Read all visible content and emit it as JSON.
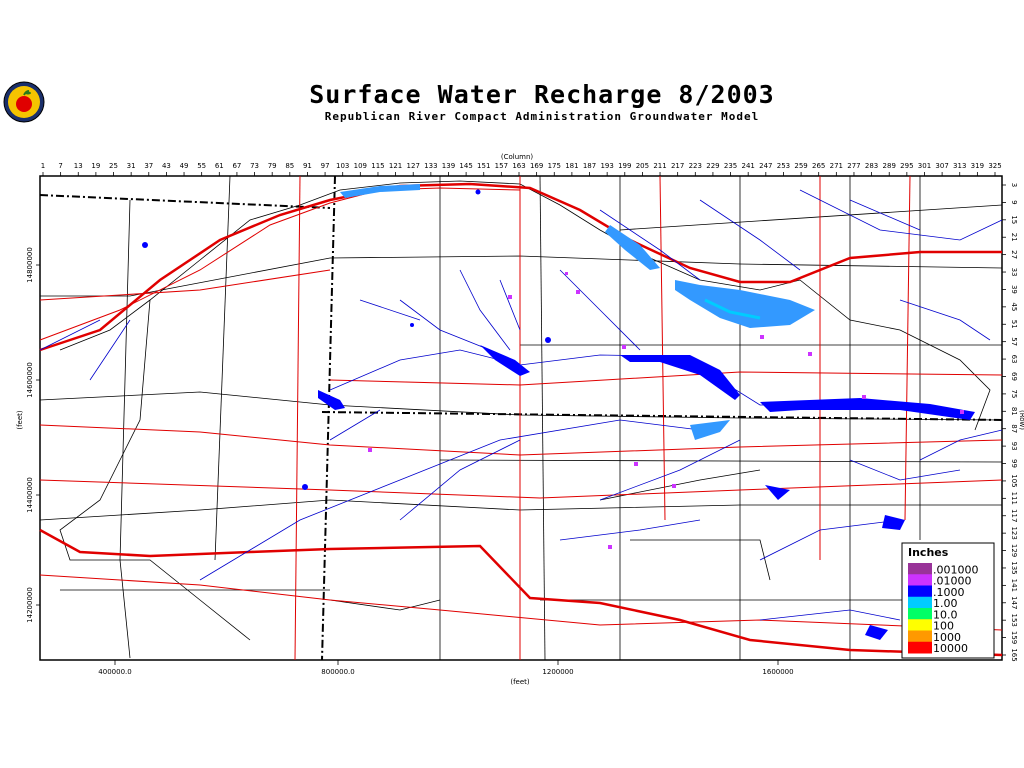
{
  "title": "Surface Water Recharge 8/2003",
  "subtitle": "Republican River Compact Administration Groundwater Model",
  "column_axis_label": "(Column)",
  "row_axis_label": "(Row)",
  "x_axis_label": "(feet)",
  "y_axis_label": "(feet)",
  "column_ticks": [
    "1",
    "7",
    "13",
    "19",
    "25",
    "31",
    "37",
    "43",
    "49",
    "55",
    "61",
    "67",
    "73",
    "79",
    "85",
    "91",
    "97",
    "103",
    "109",
    "115",
    "121",
    "127",
    "133",
    "139",
    "145",
    "151",
    "157",
    "163",
    "169",
    "175",
    "181",
    "187",
    "193",
    "199",
    "205",
    "211",
    "217",
    "223",
    "229",
    "235",
    "241",
    "247",
    "253",
    "259",
    "265",
    "271",
    "277",
    "283",
    "289",
    "295",
    "301",
    "307",
    "313",
    "319",
    "325"
  ],
  "row_ticks": [
    "3",
    "9",
    "15",
    "21",
    "27",
    "33",
    "39",
    "45",
    "51",
    "57",
    "63",
    "69",
    "75",
    "81",
    "87",
    "93",
    "99",
    "105",
    "111",
    "117",
    "123",
    "129",
    "135",
    "141",
    "147",
    "153",
    "159",
    "165"
  ],
  "x_ticks": [
    "400000.0",
    "800000.0",
    "1200000",
    "1600000"
  ],
  "y_ticks": [
    "14800000",
    "14600000",
    "14400000",
    "14200000"
  ],
  "legend": {
    "title": "Inches",
    "items": [
      {
        "label": ".001000",
        "color": "#993399"
      },
      {
        "label": ".01000",
        "color": "#cc33ff"
      },
      {
        "label": ".1000",
        "color": "#0000ff"
      },
      {
        "label": "1.00",
        "color": "#00ccff"
      },
      {
        "label": "10.0",
        "color": "#00ff66"
      },
      {
        "label": "100",
        "color": "#ffff00"
      },
      {
        "label": "1000",
        "color": "#ff9900"
      },
      {
        "label": "10000",
        "color": "#ff0000"
      }
    ]
  },
  "colors": {
    "roads": "#e00000",
    "streams": "#0000cc",
    "boundary": "#000000",
    "recharge_high": "#3399ff",
    "recharge_low": "#0000ff",
    "recharge_minimal": "#cc33ff"
  },
  "logo_icon": "apple-seal-icon"
}
